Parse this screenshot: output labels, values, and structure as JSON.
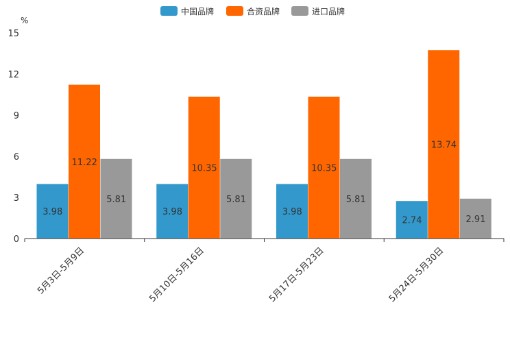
{
  "chart_data": {
    "type": "bar",
    "unit_label": "%",
    "categories": [
      "5月3日-5月9日",
      "5月10日-5月16日",
      "5月17日-5月23日",
      "5月24日-5月30日"
    ],
    "series": [
      {
        "name": "中国品牌",
        "color": "#3399cc",
        "values": [
          3.98,
          3.98,
          3.98,
          2.74
        ]
      },
      {
        "name": "合资品牌",
        "color": "#ff6600",
        "values": [
          11.22,
          10.35,
          10.35,
          13.74
        ]
      },
      {
        "name": "进口品牌",
        "color": "#999999",
        "values": [
          5.81,
          5.81,
          5.81,
          2.91
        ]
      }
    ],
    "y_ticks": [
      0,
      3,
      6,
      9,
      12,
      15
    ],
    "ylim": [
      0,
      15
    ],
    "legend_position": "top-center",
    "grid": false
  }
}
